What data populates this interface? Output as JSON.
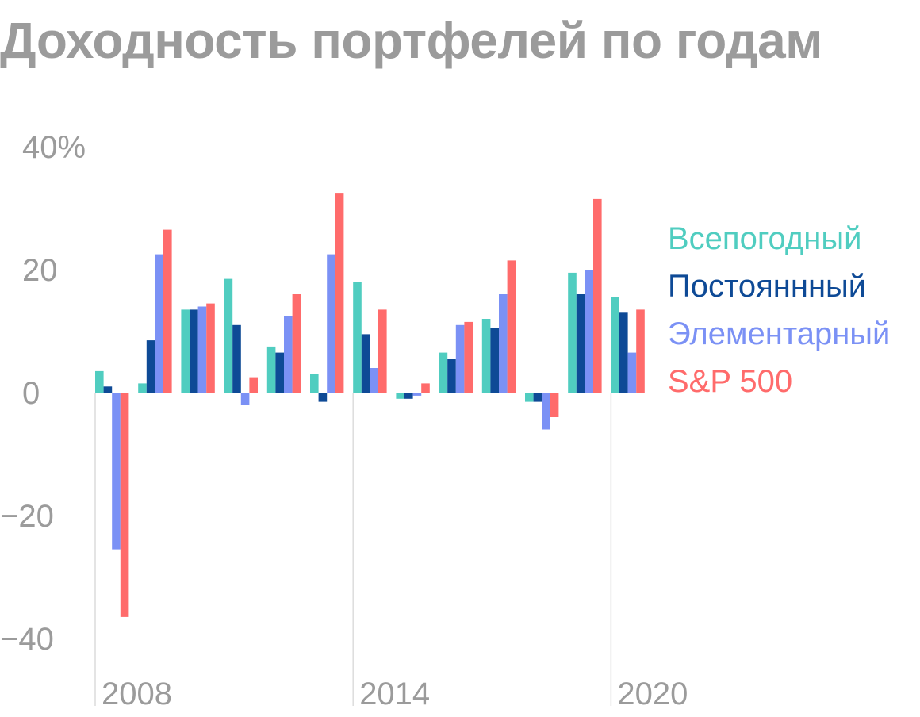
{
  "chart_data": {
    "type": "bar",
    "title": "Доходность портфелей по годам",
    "xlabel": "",
    "ylabel": "",
    "ylim": [
      -45,
      40
    ],
    "y_ticks": [
      {
        "value": 40,
        "label": "40%"
      },
      {
        "value": 20,
        "label": "20"
      },
      {
        "value": 0,
        "label": "0"
      },
      {
        "value": -20,
        "label": "−20"
      },
      {
        "value": -40,
        "label": "−40"
      }
    ],
    "x_tick_labels": [
      {
        "year": 2008,
        "label": "2008"
      },
      {
        "year": 2014,
        "label": "2014"
      },
      {
        "year": 2020,
        "label": "2020"
      }
    ],
    "grid": "vertical lines at labeled years",
    "legend_placement": "right",
    "categories": [
      2008,
      2009,
      2010,
      2011,
      2012,
      2013,
      2014,
      2015,
      2016,
      2017,
      2018,
      2019,
      2020
    ],
    "series": [
      {
        "name": "Всепогодный",
        "color": "#50cdc0",
        "values": [
          3.5,
          1.5,
          13.5,
          18.5,
          7.5,
          3.0,
          18.0,
          -1.0,
          6.5,
          12.0,
          -1.5,
          19.5,
          15.5
        ]
      },
      {
        "name": "Постояннный",
        "color": "#0e4a96",
        "values": [
          1.0,
          8.5,
          13.5,
          11.0,
          6.5,
          -1.5,
          9.5,
          -1.0,
          5.5,
          10.5,
          -1.5,
          16.0,
          13.0
        ]
      },
      {
        "name": "Элементарный",
        "color": "#7b91f5",
        "values": [
          -25.5,
          22.5,
          14.0,
          -2.0,
          12.5,
          22.5,
          4.0,
          -0.5,
          11.0,
          16.0,
          -6.0,
          20.0,
          6.5
        ]
      },
      {
        "name": "S&P 500",
        "color": "#ff6b6b",
        "values": [
          -36.5,
          26.5,
          14.5,
          2.5,
          16.0,
          32.5,
          13.5,
          1.5,
          11.5,
          21.5,
          -4.0,
          31.5,
          13.5
        ]
      }
    ]
  }
}
